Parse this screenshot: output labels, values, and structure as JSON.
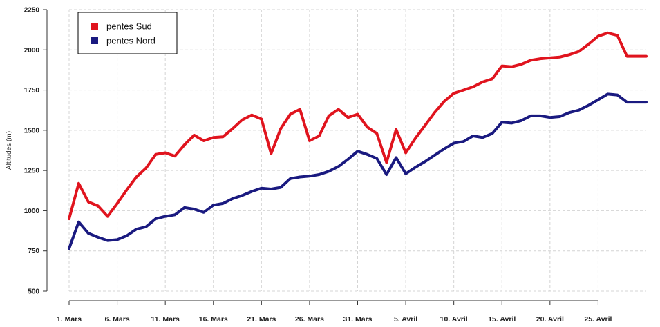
{
  "chart_data": {
    "type": "line",
    "title": "",
    "xlabel": "",
    "ylabel": "Altitudes (m)",
    "ylim": [
      500,
      2250
    ],
    "y_ticks": [
      500,
      750,
      1000,
      1250,
      1500,
      1750,
      2000,
      2250
    ],
    "x_ticks": [
      {
        "x": 1,
        "label": "1. Mars"
      },
      {
        "x": 6,
        "label": "6. Mars"
      },
      {
        "x": 11,
        "label": "11. Mars"
      },
      {
        "x": 16,
        "label": "16. Mars"
      },
      {
        "x": 21,
        "label": "21. Mars"
      },
      {
        "x": 26,
        "label": "26. Mars"
      },
      {
        "x": 31,
        "label": "31. Mars"
      },
      {
        "x": 36,
        "label": "5. Avril"
      },
      {
        "x": 41,
        "label": "10. Avril"
      },
      {
        "x": 46,
        "label": "15. Avril"
      },
      {
        "x": 51,
        "label": "20. Avril"
      },
      {
        "x": 56,
        "label": "25. Avril"
      }
    ],
    "xlim": [
      1,
      61
    ],
    "grid": true,
    "legend_position": "top-left",
    "x": [
      1,
      2,
      3,
      4,
      5,
      6,
      7,
      8,
      9,
      10,
      11,
      12,
      13,
      14,
      15,
      16,
      17,
      18,
      19,
      20,
      21,
      22,
      23,
      24,
      25,
      26,
      27,
      28,
      29,
      30,
      31,
      32,
      33,
      34,
      35,
      36,
      37,
      38,
      39,
      40,
      41,
      42,
      43,
      44,
      45,
      46,
      47,
      48,
      49,
      50,
      51,
      52,
      53,
      54,
      55,
      56,
      57,
      58,
      59,
      60,
      61
    ],
    "series": [
      {
        "name": "pentes Sud",
        "color": "#e0141e",
        "values": [
          950,
          1170,
          1055,
          1030,
          965,
          1045,
          1130,
          1210,
          1265,
          1350,
          1360,
          1340,
          1410,
          1470,
          1435,
          1455,
          1460,
          1510,
          1565,
          1595,
          1570,
          1355,
          1510,
          1600,
          1630,
          1435,
          1465,
          1590,
          1630,
          1580,
          1600,
          1520,
          1480,
          1300,
          1505,
          1360,
          1450,
          1530,
          1610,
          1680,
          1730,
          1750,
          1770,
          1800,
          1820,
          1900,
          1895,
          1910,
          1935,
          1945,
          1950,
          1955,
          1970,
          1990,
          2035,
          2085,
          2105,
          2090,
          1960,
          1960,
          1960
        ]
      },
      {
        "name": "pentes Nord",
        "color": "#1a1a80",
        "values": [
          765,
          930,
          860,
          835,
          815,
          820,
          845,
          885,
          900,
          950,
          965,
          975,
          1020,
          1010,
          990,
          1035,
          1045,
          1075,
          1095,
          1120,
          1140,
          1135,
          1145,
          1200,
          1210,
          1215,
          1225,
          1245,
          1275,
          1320,
          1370,
          1350,
          1325,
          1225,
          1330,
          1230,
          1270,
          1305,
          1345,
          1385,
          1420,
          1430,
          1465,
          1455,
          1480,
          1550,
          1545,
          1560,
          1590,
          1590,
          1580,
          1585,
          1610,
          1625,
          1655,
          1690,
          1725,
          1720,
          1675,
          1675,
          1675
        ]
      }
    ]
  }
}
